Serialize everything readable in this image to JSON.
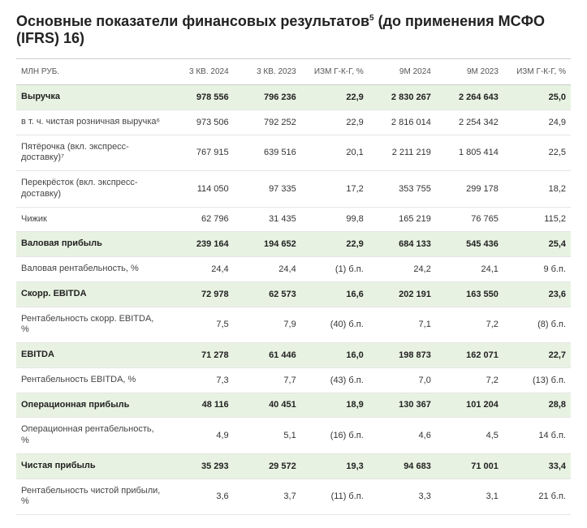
{
  "title_html": "Основные показатели финансовых результатов<sup>5</sup> (до применения МСФО (IFRS) 16)",
  "colors": {
    "background": "#ffffff",
    "text": "#333333",
    "heading": "#222222",
    "border": "#e5e5e5",
    "header_border": "#cccccc",
    "highlight_row": "#e8f2e2"
  },
  "columns": [
    {
      "key": "label",
      "label": "МЛН РУБ.",
      "class": "lbl"
    },
    {
      "key": "q3_2024",
      "label": "3 КВ. 2024",
      "class": "num"
    },
    {
      "key": "q3_2023",
      "label": "3 КВ. 2023",
      "class": "num"
    },
    {
      "key": "q_yoy",
      "label": "ИЗМ Г-К-Г, %",
      "class": "pct"
    },
    {
      "key": "m9_2024",
      "label": "9М 2024",
      "class": "num"
    },
    {
      "key": "m9_2023",
      "label": "9М 2023",
      "class": "num"
    },
    {
      "key": "m_yoy",
      "label": "ИЗМ Г-К-Г, %",
      "class": "pct"
    }
  ],
  "rows": [
    {
      "hl": true,
      "bold": true,
      "label": "Выручка",
      "q3_2024": "978 556",
      "q3_2023": "796 236",
      "q_yoy": "22,9",
      "m9_2024": "2 830 267",
      "m9_2023": "2 264 643",
      "m_yoy": "25,0"
    },
    {
      "hl": false,
      "bold": false,
      "label": "в т. ч. чистая розничная выручка⁶",
      "q3_2024": "973 506",
      "q3_2023": "792 252",
      "q_yoy": "22,9",
      "m9_2024": "2 816 014",
      "m9_2023": "2 254 342",
      "m_yoy": "24,9"
    },
    {
      "hl": false,
      "bold": false,
      "label": "Пятёрочка (вкл. экспресс-доставку)⁷",
      "q3_2024": "767 915",
      "q3_2023": "639 516",
      "q_yoy": "20,1",
      "m9_2024": "2 211 219",
      "m9_2023": "1 805 414",
      "m_yoy": "22,5"
    },
    {
      "hl": false,
      "bold": false,
      "label": "Перекрёсток (вкл. экспресс-доставку)",
      "q3_2024": "114 050",
      "q3_2023": "97 335",
      "q_yoy": "17,2",
      "m9_2024": "353 755",
      "m9_2023": "299 178",
      "m_yoy": "18,2"
    },
    {
      "hl": false,
      "bold": false,
      "label": "Чижик",
      "q3_2024": "62 796",
      "q3_2023": "31 435",
      "q_yoy": "99,8",
      "m9_2024": "165 219",
      "m9_2023": "76 765",
      "m_yoy": "115,2"
    },
    {
      "hl": true,
      "bold": true,
      "label": "Валовая прибыль",
      "q3_2024": "239 164",
      "q3_2023": "194 652",
      "q_yoy": "22,9",
      "m9_2024": "684 133",
      "m9_2023": "545 436",
      "m_yoy": "25,4"
    },
    {
      "hl": false,
      "bold": false,
      "label": "Валовая рентабельность, %",
      "q3_2024": "24,4",
      "q3_2023": "24,4",
      "q_yoy": "(1) б.п.",
      "m9_2024": "24,2",
      "m9_2023": "24,1",
      "m_yoy": "9 б.п."
    },
    {
      "hl": true,
      "bold": true,
      "label": "Скорр. EBITDA",
      "q3_2024": "72 978",
      "q3_2023": "62 573",
      "q_yoy": "16,6",
      "m9_2024": "202 191",
      "m9_2023": "163 550",
      "m_yoy": "23,6"
    },
    {
      "hl": false,
      "bold": false,
      "label": "Рентабельность скорр. EBITDA, %",
      "q3_2024": "7,5",
      "q3_2023": "7,9",
      "q_yoy": "(40) б.п.",
      "m9_2024": "7,1",
      "m9_2023": "7,2",
      "m_yoy": "(8) б.п."
    },
    {
      "hl": true,
      "bold": true,
      "label": "EBITDA",
      "q3_2024": "71 278",
      "q3_2023": "61 446",
      "q_yoy": "16,0",
      "m9_2024": "198 873",
      "m9_2023": "162 071",
      "m_yoy": "22,7"
    },
    {
      "hl": false,
      "bold": false,
      "label": "Рентабельность EBITDA, %",
      "q3_2024": "7,3",
      "q3_2023": "7,7",
      "q_yoy": "(43) б.п.",
      "m9_2024": "7,0",
      "m9_2023": "7,2",
      "m_yoy": "(13) б.п."
    },
    {
      "hl": true,
      "bold": true,
      "label": "Операционная прибыль",
      "q3_2024": "48 116",
      "q3_2023": "40 451",
      "q_yoy": "18,9",
      "m9_2024": "130 367",
      "m9_2023": "101 204",
      "m_yoy": "28,8"
    },
    {
      "hl": false,
      "bold": false,
      "label": "Операционная рентабельность, %",
      "q3_2024": "4,9",
      "q3_2023": "5,1",
      "q_yoy": "(16) б.п.",
      "m9_2024": "4,6",
      "m9_2023": "4,5",
      "m_yoy": "14 б.п."
    },
    {
      "hl": true,
      "bold": true,
      "label": "Чистая прибыль",
      "q3_2024": "35 293",
      "q3_2023": "29 572",
      "q_yoy": "19,3",
      "m9_2024": "94 683",
      "m9_2023": "71 001",
      "m_yoy": "33,4"
    },
    {
      "hl": false,
      "bold": false,
      "label": "Рентабельность чистой прибыли, %",
      "q3_2024": "3,6",
      "q3_2023": "3,7",
      "q_yoy": "(11) б.п.",
      "m9_2024": "3,3",
      "m9_2023": "3,1",
      "m_yoy": "21 б.п."
    }
  ]
}
